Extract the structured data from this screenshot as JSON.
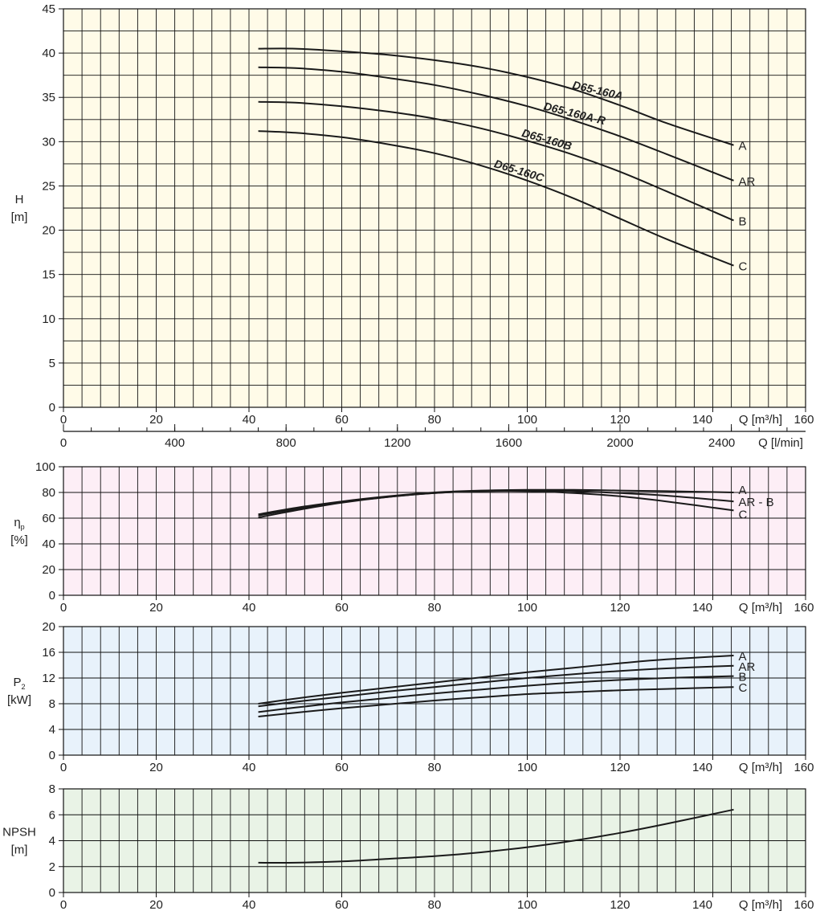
{
  "colors": {
    "head_bg": "#fffbe8",
    "efficiency_bg": "#fdeef6",
    "power_bg": "#e8f2fb",
    "npsh_bg": "#e9f3e6",
    "grid": "#111111",
    "curve": "#1a1a1a"
  },
  "chart_data": [
    {
      "type": "line",
      "id": "head",
      "ylabel": "H",
      "yunit": "[m]",
      "xlabel": "Q [m³/h]",
      "xlim": [
        0,
        160
      ],
      "ylim": [
        0,
        45
      ],
      "yticks": [
        "0",
        "5",
        "10",
        "15",
        "20",
        "25",
        "30",
        "35",
        "40",
        "45"
      ],
      "xticks": [
        "0",
        "20",
        "40",
        "60",
        "80",
        "100",
        "120",
        "140",
        "160"
      ],
      "grid": true,
      "secondary_x": {
        "label": "Q [l/min]",
        "ticks": [
          "0",
          "400",
          "800",
          "1200",
          "1600",
          "2000",
          "2400"
        ],
        "values": [
          0,
          400,
          800,
          1200,
          1600,
          2000,
          2400
        ]
      },
      "series": [
        {
          "name": "A",
          "model": "D65-160A",
          "x": [
            42,
            50,
            60,
            70,
            80,
            90,
            100,
            110,
            120,
            130,
            144.5
          ],
          "y": [
            40.5,
            40.5,
            40.2,
            39.8,
            39.2,
            38.4,
            37.3,
            35.9,
            34.1,
            32.1,
            29.6
          ]
        },
        {
          "name": "AR",
          "model": "D65-160A-R",
          "x": [
            42,
            50,
            60,
            70,
            80,
            90,
            100,
            110,
            120,
            130,
            144.5
          ],
          "y": [
            38.4,
            38.3,
            37.9,
            37.2,
            36.4,
            35.3,
            34.0,
            32.4,
            30.6,
            28.6,
            25.6
          ]
        },
        {
          "name": "B",
          "model": "D65-160B",
          "x": [
            42,
            50,
            60,
            70,
            80,
            90,
            100,
            110,
            120,
            130,
            144.5
          ],
          "y": [
            34.5,
            34.4,
            34.0,
            33.4,
            32.6,
            31.5,
            30.1,
            28.5,
            26.6,
            24.4,
            21.1
          ]
        },
        {
          "name": "C",
          "model": "D65-160C",
          "x": [
            42,
            50,
            60,
            70,
            80,
            90,
            100,
            110,
            120,
            130,
            144.5
          ],
          "y": [
            31.2,
            31.0,
            30.5,
            29.7,
            28.7,
            27.3,
            25.6,
            23.6,
            21.3,
            19.0,
            16.0
          ]
        }
      ]
    },
    {
      "type": "line",
      "id": "efficiency",
      "ylabel": "ηp",
      "yunit": "[%]",
      "xlabel": "Q [m³/h]",
      "xlim": [
        0,
        160
      ],
      "ylim": [
        0,
        100
      ],
      "yticks": [
        "0",
        "20",
        "40",
        "60",
        "80",
        "100"
      ],
      "xticks": [
        "0",
        "20",
        "40",
        "60",
        "80",
        "100",
        "120",
        "140",
        "160"
      ],
      "grid": true,
      "series": [
        {
          "name": "A",
          "x": [
            42,
            50,
            60,
            70,
            80,
            90,
            100,
            110,
            120,
            130,
            144.5
          ],
          "y": [
            63,
            68,
            73,
            77,
            80,
            81.5,
            82,
            82,
            81.5,
            81,
            80
          ]
        },
        {
          "name": "AR - B",
          "x": [
            42,
            50,
            60,
            70,
            80,
            90,
            100,
            110,
            120,
            130,
            144.5
          ],
          "y": [
            62,
            67,
            72.5,
            76.5,
            79.5,
            81,
            81.5,
            81,
            79.5,
            77.5,
            73
          ]
        },
        {
          "name": "C",
          "x": [
            42,
            50,
            60,
            70,
            80,
            90,
            100,
            110,
            120,
            130,
            144.5
          ],
          "y": [
            60.5,
            66,
            72,
            76.5,
            79.5,
            81,
            81,
            79.5,
            77,
            73,
            66
          ]
        }
      ]
    },
    {
      "type": "line",
      "id": "power",
      "ylabel": "P2",
      "yunit": "[kW]",
      "xlabel": "Q [m³/h]",
      "xlim": [
        0,
        160
      ],
      "ylim": [
        0,
        20
      ],
      "yticks": [
        "0",
        "4",
        "8",
        "12",
        "16",
        "20"
      ],
      "xticks": [
        "0",
        "20",
        "40",
        "60",
        "80",
        "100",
        "120",
        "140",
        "160"
      ],
      "grid": true,
      "series": [
        {
          "name": "A",
          "x": [
            42,
            50,
            60,
            70,
            80,
            90,
            100,
            110,
            120,
            130,
            144.5
          ],
          "y": [
            8.0,
            8.8,
            9.7,
            10.5,
            11.3,
            12.1,
            12.9,
            13.6,
            14.3,
            14.9,
            15.5
          ]
        },
        {
          "name": "AR",
          "x": [
            42,
            50,
            60,
            70,
            80,
            90,
            100,
            110,
            120,
            130,
            144.5
          ],
          "y": [
            7.6,
            8.3,
            9.1,
            9.9,
            10.6,
            11.3,
            12.0,
            12.6,
            13.1,
            13.5,
            13.9
          ]
        },
        {
          "name": "B",
          "x": [
            42,
            50,
            60,
            70,
            80,
            90,
            100,
            110,
            120,
            130,
            144.5
          ],
          "y": [
            6.7,
            7.4,
            8.2,
            8.9,
            9.6,
            10.2,
            10.8,
            11.3,
            11.7,
            12.0,
            12.3
          ]
        },
        {
          "name": "C",
          "x": [
            42,
            50,
            60,
            70,
            80,
            90,
            100,
            110,
            120,
            130,
            144.5
          ],
          "y": [
            6.0,
            6.6,
            7.3,
            7.9,
            8.5,
            9.0,
            9.5,
            9.8,
            10.1,
            10.3,
            10.6
          ]
        }
      ]
    },
    {
      "type": "line",
      "id": "npsh",
      "ylabel": "NPSH",
      "yunit": "[m]",
      "xlabel": "Q [m³/h]",
      "xlim": [
        0,
        160
      ],
      "ylim": [
        0,
        8
      ],
      "yticks": [
        "0",
        "2",
        "4",
        "6",
        "8"
      ],
      "xticks": [
        "0",
        "20",
        "40",
        "60",
        "80",
        "100",
        "120",
        "140",
        "160"
      ],
      "grid": true,
      "series": [
        {
          "name": "",
          "x": [
            42,
            50,
            60,
            70,
            80,
            90,
            100,
            110,
            120,
            130,
            144.5
          ],
          "y": [
            2.3,
            2.3,
            2.4,
            2.6,
            2.8,
            3.1,
            3.5,
            4.0,
            4.6,
            5.3,
            6.4
          ]
        }
      ]
    }
  ]
}
